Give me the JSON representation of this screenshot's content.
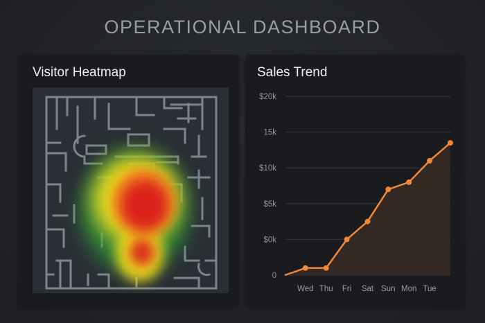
{
  "dashboard": {
    "title": "OPERATIONAL DASHBOARD"
  },
  "heatmap_panel": {
    "title": "Visitor Heatmap"
  },
  "sales_panel": {
    "title": "Sales Trend"
  },
  "colors": {
    "accent_line": "#f0883a",
    "area_fill": "#3a2a24",
    "heat_hot": "#d91c1c",
    "heat_warm": "#f5e41e",
    "heat_cool": "#2e9e3e"
  },
  "chart_data": {
    "type": "line",
    "title": "Sales Trend",
    "categories": [
      "",
      "Wed",
      "Thu",
      "Fri",
      "Sat",
      "Sun",
      "Mon",
      "Tue",
      ""
    ],
    "x_tick_labels": [
      "Wed",
      "Thu",
      "Fri",
      "Sat",
      "Sun",
      "Mon",
      "Tue"
    ],
    "values": [
      0,
      1,
      1,
      5,
      7.5,
      12,
      13,
      16,
      18.5
    ],
    "y_tick_labels": [
      "0",
      "$0k",
      "$5k",
      "$10k",
      "15k",
      "$20k"
    ],
    "ylim": [
      0,
      25
    ],
    "grid": true,
    "area_fill": true
  }
}
